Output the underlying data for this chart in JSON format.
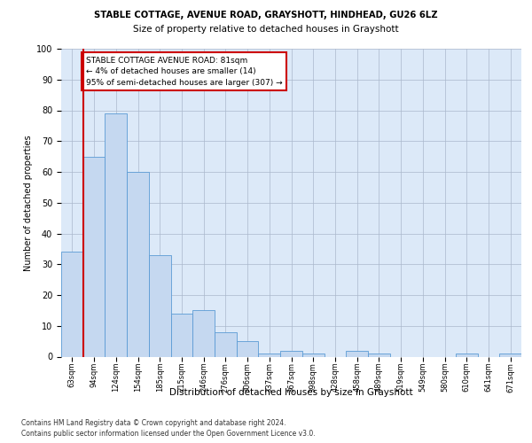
{
  "title1": "STABLE COTTAGE, AVENUE ROAD, GRAYSHOTT, HINDHEAD, GU26 6LZ",
  "title2": "Size of property relative to detached houses in Grayshott",
  "xlabel": "Distribution of detached houses by size in Grayshott",
  "ylabel": "Number of detached properties",
  "categories": [
    "63sqm",
    "94sqm",
    "124sqm",
    "154sqm",
    "185sqm",
    "215sqm",
    "246sqm",
    "276sqm",
    "306sqm",
    "337sqm",
    "367sqm",
    "398sqm",
    "428sqm",
    "458sqm",
    "489sqm",
    "519sqm",
    "549sqm",
    "580sqm",
    "610sqm",
    "641sqm",
    "671sqm"
  ],
  "values": [
    34,
    65,
    79,
    60,
    33,
    14,
    15,
    8,
    5,
    1,
    2,
    1,
    0,
    2,
    1,
    0,
    0,
    0,
    1,
    0,
    1
  ],
  "bar_color": "#c5d8f0",
  "bar_edge_color": "#5b9bd5",
  "vline_color": "#cc0000",
  "annotation_text_line1": "STABLE COTTAGE AVENUE ROAD: 81sqm",
  "annotation_text_line2": "← 4% of detached houses are smaller (14)",
  "annotation_text_line3": "95% of semi-detached houses are larger (307) →",
  "annotation_box_color": "#ffffff",
  "annotation_box_edge": "#cc0000",
  "ylim": [
    0,
    100
  ],
  "yticks": [
    0,
    10,
    20,
    30,
    40,
    50,
    60,
    70,
    80,
    90,
    100
  ],
  "footer1": "Contains HM Land Registry data © Crown copyright and database right 2024.",
  "footer2": "Contains public sector information licensed under the Open Government Licence v3.0.",
  "plot_bg_color": "#dce9f8",
  "fig_bg_color": "#ffffff"
}
